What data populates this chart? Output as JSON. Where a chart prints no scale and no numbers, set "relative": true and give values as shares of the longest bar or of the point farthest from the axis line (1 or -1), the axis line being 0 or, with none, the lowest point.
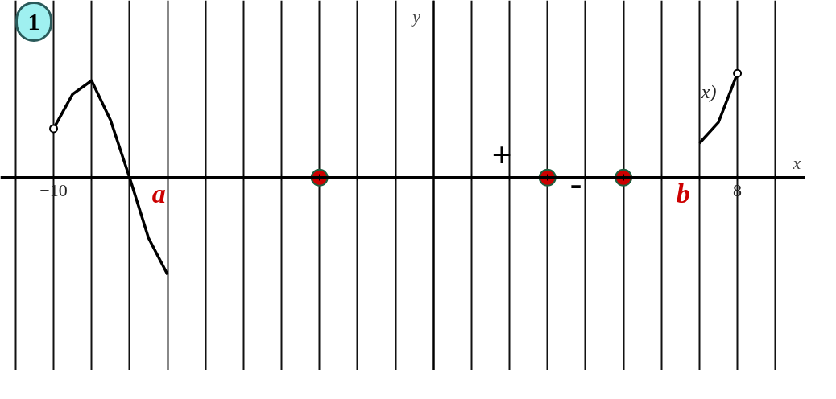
{
  "chart_data": {
    "type": "line",
    "relative": true,
    "xlabel": "x",
    "ylabel": "y",
    "xlim": [
      -11.4,
      9.8
    ],
    "xticks": [
      {
        "value": -11,
        "label": null
      },
      {
        "value": -10,
        "label": "−10"
      },
      {
        "value": -9,
        "label": null
      },
      {
        "value": -8,
        "label": null
      },
      {
        "value": -7,
        "label": null
      },
      {
        "value": -6,
        "label": null
      },
      {
        "value": -5,
        "label": null
      },
      {
        "value": -4,
        "label": null
      },
      {
        "value": -3,
        "label": null
      },
      {
        "value": -2,
        "label": null
      },
      {
        "value": -1,
        "label": null
      },
      {
        "value": 0,
        "label": null
      },
      {
        "value": 1,
        "label": null
      },
      {
        "value": 2,
        "label": null
      },
      {
        "value": 3,
        "label": null
      },
      {
        "value": 4,
        "label": null
      },
      {
        "value": 5,
        "label": null
      },
      {
        "value": 6,
        "label": null
      },
      {
        "value": 7,
        "label": null
      },
      {
        "value": 8,
        "label": "8"
      },
      {
        "value": 9,
        "label": null
      }
    ],
    "tick_labels": "x",
    "grid": "x",
    "marker": "none",
    "line_style": "solid",
    "series": [
      {
        "color": "#000000",
        "x": [
          -10,
          -9.5,
          -9,
          -8.5,
          -8,
          -7.5,
          -7,
          6.8,
          7,
          7.5,
          8
        ],
        "values": [
          0.47,
          0.8,
          0.93,
          0.55,
          0,
          -0.58,
          -0.93,
          null,
          0.33,
          0.53,
          1
        ]
      },
      {
        "type": "scatter",
        "marker": "circle",
        "color": "#ffffff",
        "x": [
          -10,
          8
        ],
        "values": [
          0.47,
          1
        ]
      },
      {
        "type": "scatter",
        "marker": "circle",
        "color": "#cc0000",
        "x": [
          -3,
          3,
          5
        ],
        "values": [
          0,
          0,
          0
        ]
      }
    ],
    "annotations": [
      "a",
      "b",
      "+",
      "-",
      "x)",
      "1"
    ]
  }
}
